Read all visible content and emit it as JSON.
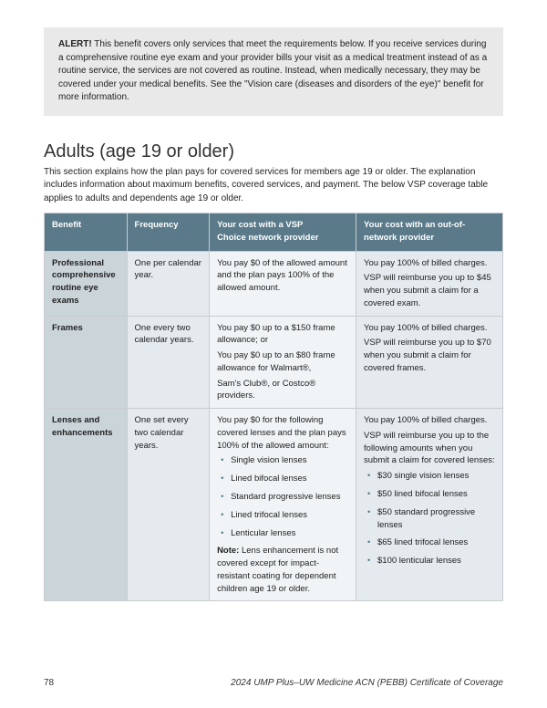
{
  "alert": {
    "label": "ALERT!",
    "text": " This benefit covers only services that meet the requirements below. If you receive services during a comprehensive routine eye exam and your provider bills your visit as a medical treatment instead of as a routine service, the services are not covered as routine. Instead, when medically necessary, they may be covered under your medical benefits. See the \"Vision care (diseases and disorders of the eye)\" benefit for more information."
  },
  "section": {
    "heading": "Adults (age 19 or older)",
    "intro": "This section explains how the plan pays for covered services for members age 19 or older. The explanation includes information about maximum benefits, covered services, and payment. The below VSP coverage table applies to adults and dependents age 19 or older."
  },
  "table": {
    "headers": {
      "benefit": "Benefit",
      "freq": "Frequency",
      "in_l1": "Your cost with a VSP",
      "in_l2": "Choice network provider",
      "out_l1": "Your cost with an out-of-",
      "out_l2": "network provider"
    },
    "rows": [
      {
        "benefit": "Professional comprehensive routine eye exams",
        "freq": "One per calendar year.",
        "in": [
          "You pay $0 of the allowed amount and the plan pays 100% of the allowed amount."
        ],
        "out": [
          "You pay 100% of billed charges.",
          "VSP will reimburse you up to $45 when you submit a claim for a covered exam."
        ]
      },
      {
        "benefit": "Frames",
        "freq": "One every two calendar years.",
        "in": [
          "You pay $0 up to a $150 frame allowance; or",
          "You pay $0 up to an $80 frame allowance for Walmart®,",
          "Sam's Club®, or Costco® providers."
        ],
        "out": [
          "You pay 100% of billed charges.",
          "VSP will reimburse you up to $70 when you submit a claim for covered frames."
        ]
      },
      {
        "benefit": "Lenses and enhancements",
        "freq": "One set every two calendar years.",
        "in_intro": "You pay $0 for the following covered lenses and the plan pays 100% of the allowed amount:",
        "in_bullets": [
          "Single vision lenses",
          "Lined bifocal lenses",
          "Standard progressive lenses",
          "Lined trifocal lenses",
          "Lenticular lenses"
        ],
        "in_note_label": "Note:",
        "in_note": " Lens enhancement is not covered except for impact-resistant coating for dependent children age 19 or older.",
        "out_intro1": "You pay 100% of billed charges.",
        "out_intro2": "VSP will reimburse you up to the following amounts when you submit a claim for covered lenses:",
        "out_bullets": [
          "$30 single vision lenses",
          "$50 lined bifocal lenses",
          "$50 standard progressive lenses",
          "$65 lined trifocal lenses",
          "$100 lenticular lenses"
        ]
      }
    ]
  },
  "footer": {
    "page": "78",
    "doc": "2024 UMP Plus–UW Medicine ACN (PEBB) Certificate of Coverage"
  }
}
